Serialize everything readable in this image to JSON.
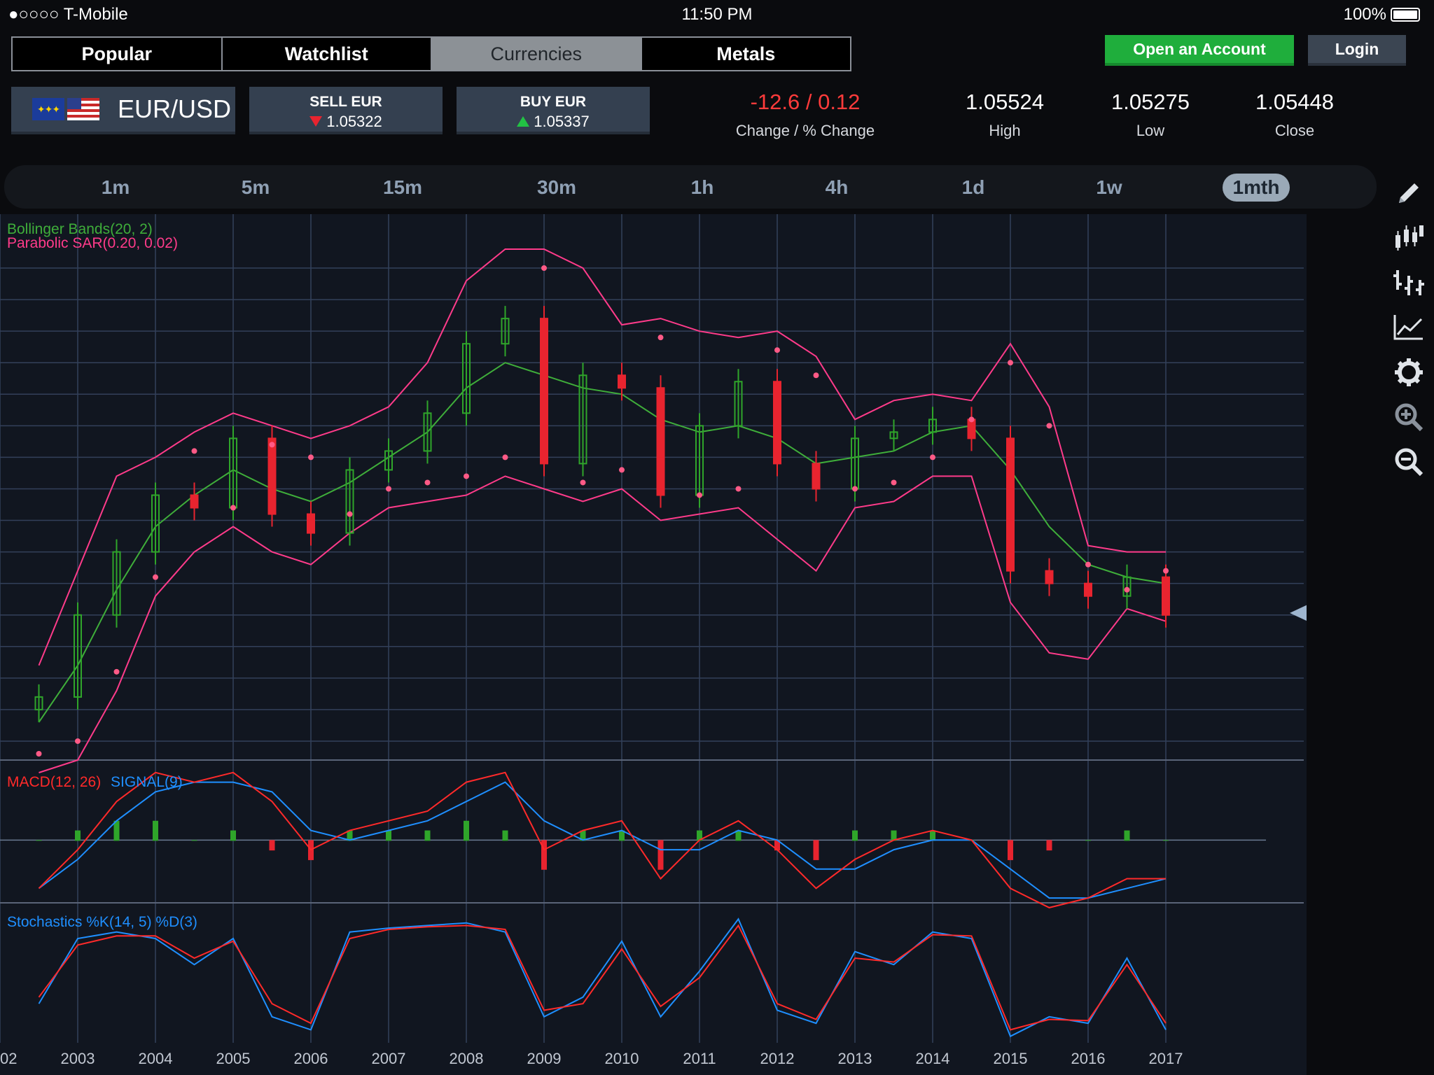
{
  "status": {
    "carrier": "●○○○○ T-Mobile",
    "time": "11:50 PM",
    "battery": "100%"
  },
  "tabs": [
    {
      "label": "Popular"
    },
    {
      "label": "Watchlist"
    },
    {
      "label": "Currencies",
      "active": true
    },
    {
      "label": "Metals"
    }
  ],
  "header": {
    "open_account": "Open an Account",
    "login": "Login"
  },
  "instrument": {
    "name": "EUR/USD",
    "sell_label": "SELL EUR",
    "sell_price": "1.05322",
    "buy_label": "BUY EUR",
    "buy_price": "1.05337",
    "change": "-12.6 / 0.12",
    "change_label": "Change / % Change",
    "high": "1.05524",
    "high_label": "High",
    "low": "1.05275",
    "low_label": "Low",
    "close": "1.05448",
    "close_label": "Close"
  },
  "timeframes": [
    "1m",
    "5m",
    "15m",
    "30m",
    "1h",
    "4h",
    "1d",
    "1w",
    "1mth"
  ],
  "active_timeframe": "1mth",
  "tools": [
    "pencil-icon",
    "candlestick-icon",
    "bar-chart-icon",
    "line-chart-icon",
    "gear-icon",
    "zoom-in-icon",
    "zoom-out-icon"
  ],
  "colors": {
    "up": "#2fa52a",
    "down": "#e8242f",
    "bollinger": "#3fae3a",
    "bb_band": "#ff3b8a",
    "sar": "#ff5a86",
    "macd": "#ff2a2a",
    "signal": "#1f8fff",
    "k_line": "#1f8fff",
    "d_line": "#ff2a2a"
  },
  "chart_data": {
    "type": "candlestick",
    "symbol": "EUR/USD",
    "interval": "1mth",
    "current_price": "1.05322",
    "indicator_labels": {
      "bollinger": "Bollinger Bands(20, 2)",
      "sar": "Parabolic SAR(0.20, 0.02)",
      "macd": "MACD(12, 26)",
      "signal": "SIGNAL(9)",
      "stochastic": "Stochastics %K(14, 5) %D(3)"
    },
    "price_ticks": [
      "1.60000",
      "1.55000",
      "1.50000",
      "1.45000",
      "1.40000",
      "1.35000",
      "1.30000",
      "1.25000",
      "1.20000",
      "1.15000",
      "1.10000",
      "1.05000",
      "1.00000",
      "0.95000",
      "0.90000",
      "0.85000"
    ],
    "macd_ticks": [
      "0.075",
      "0.05",
      "0.025",
      "0",
      "-0.025",
      "-0.05"
    ],
    "stoch_ticks": [
      "80",
      "60",
      "40",
      "20"
    ],
    "x_ticks": [
      "02",
      "2003",
      "2004",
      "2005",
      "2006",
      "2007",
      "2008",
      "2009",
      "2010",
      "2011",
      "2012",
      "2013",
      "2014",
      "2015",
      "2016",
      "2017"
    ],
    "x": [
      2002.5,
      2003.0,
      2003.5,
      2004.0,
      2004.5,
      2005.0,
      2005.5,
      2006.0,
      2006.5,
      2007.0,
      2007.5,
      2008.0,
      2008.5,
      2009.0,
      2009.5,
      2010.0,
      2010.5,
      2011.0,
      2011.5,
      2012.0,
      2012.5,
      2013.0,
      2013.5,
      2014.0,
      2014.5,
      2015.0,
      2015.5,
      2016.0,
      2016.5,
      2017.0
    ],
    "close": [
      0.92,
      1.05,
      1.15,
      1.24,
      1.22,
      1.33,
      1.21,
      1.18,
      1.28,
      1.31,
      1.37,
      1.48,
      1.52,
      1.29,
      1.43,
      1.41,
      1.24,
      1.35,
      1.42,
      1.29,
      1.25,
      1.33,
      1.34,
      1.36,
      1.33,
      1.12,
      1.1,
      1.08,
      1.11,
      1.05
    ],
    "bb_mid": [
      0.88,
      0.97,
      1.09,
      1.19,
      1.24,
      1.28,
      1.25,
      1.23,
      1.26,
      1.3,
      1.34,
      1.41,
      1.45,
      1.43,
      1.41,
      1.4,
      1.36,
      1.34,
      1.35,
      1.33,
      1.29,
      1.3,
      1.31,
      1.34,
      1.35,
      1.28,
      1.19,
      1.13,
      1.11,
      1.1
    ],
    "bb_upper": [
      0.97,
      1.12,
      1.27,
      1.3,
      1.34,
      1.37,
      1.35,
      1.33,
      1.35,
      1.38,
      1.45,
      1.58,
      1.63,
      1.63,
      1.6,
      1.51,
      1.52,
      1.5,
      1.49,
      1.5,
      1.46,
      1.36,
      1.39,
      1.4,
      1.39,
      1.48,
      1.38,
      1.16,
      1.15,
      1.15
    ],
    "bb_lower": [
      0.8,
      0.82,
      0.93,
      1.08,
      1.15,
      1.19,
      1.15,
      1.13,
      1.18,
      1.22,
      1.23,
      1.24,
      1.27,
      1.25,
      1.23,
      1.25,
      1.2,
      1.21,
      1.22,
      1.17,
      1.12,
      1.22,
      1.23,
      1.27,
      1.27,
      1.07,
      0.99,
      0.98,
      1.06,
      1.04
    ],
    "macd": [
      -0.05,
      -0.01,
      0.04,
      0.07,
      0.06,
      0.07,
      0.04,
      -0.01,
      0.01,
      0.02,
      0.03,
      0.06,
      0.07,
      -0.01,
      0.01,
      0.02,
      -0.04,
      0.0,
      0.02,
      -0.01,
      -0.05,
      -0.02,
      0.0,
      0.01,
      0.0,
      -0.05,
      -0.07,
      -0.06,
      -0.04,
      -0.04
    ],
    "signal": [
      -0.05,
      -0.02,
      0.02,
      0.05,
      0.06,
      0.06,
      0.05,
      0.01,
      0.0,
      0.01,
      0.02,
      0.04,
      0.06,
      0.02,
      0.0,
      0.01,
      -0.01,
      -0.01,
      0.01,
      0.0,
      -0.03,
      -0.03,
      -0.01,
      0.0,
      0.0,
      -0.03,
      -0.06,
      -0.06,
      -0.05,
      -0.04
    ],
    "stoch_k": [
      30,
      80,
      85,
      80,
      60,
      80,
      20,
      10,
      85,
      88,
      90,
      92,
      85,
      20,
      35,
      78,
      20,
      55,
      95,
      25,
      15,
      70,
      60,
      85,
      80,
      5,
      20,
      15,
      65,
      10
    ],
    "stoch_d": [
      35,
      75,
      82,
      82,
      65,
      78,
      30,
      15,
      80,
      87,
      89,
      90,
      87,
      25,
      30,
      72,
      28,
      50,
      90,
      30,
      18,
      65,
      62,
      83,
      82,
      10,
      18,
      17,
      60,
      15
    ]
  }
}
